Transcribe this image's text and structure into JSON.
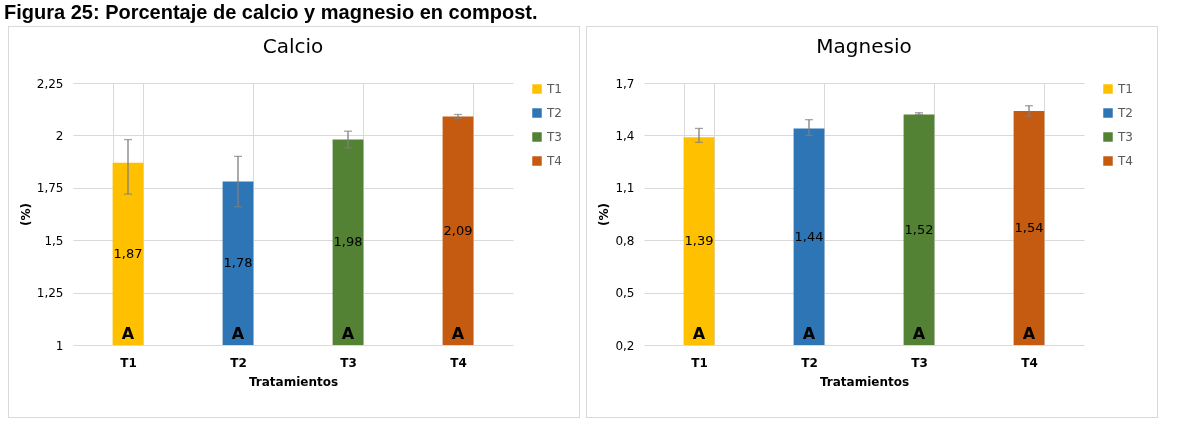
{
  "chart_data": [
    {
      "type": "bar",
      "title": "Calcio",
      "xlabel": "Tratamientos",
      "ylabel": "(%)",
      "stacked": true,
      "annotations": [
        "Figura 25: Porcentaje de calcio y magnesio en compost.",
        "A",
        "A",
        "A",
        "A"
      ],
      "categories": [
        "T1",
        "T2",
        "T3",
        "T4"
      ],
      "series": [
        {
          "name": "T1",
          "color": "#ffc000",
          "values": [
            1.87,
            null,
            null,
            null
          ],
          "value_labels": [
            "1,87",
            null,
            null,
            null
          ],
          "errors": [
            [
              1.72,
              1.98
            ],
            null,
            null,
            null
          ]
        },
        {
          "name": "T2",
          "color": "#2e75b6",
          "values": [
            null,
            1.78,
            null,
            null
          ],
          "value_labels": [
            null,
            "1,78",
            null,
            null
          ],
          "errors": [
            null,
            [
              1.66,
              1.9
            ],
            null,
            null
          ]
        },
        {
          "name": "T3",
          "color": "#548235",
          "values": [
            null,
            null,
            1.98,
            null
          ],
          "value_labels": [
            null,
            null,
            "1,98",
            null
          ],
          "errors": [
            null,
            null,
            [
              1.94,
              2.02
            ],
            null
          ]
        },
        {
          "name": "T4",
          "color": "#c55a11",
          "values": [
            null,
            null,
            null,
            2.09
          ],
          "value_labels": [
            null,
            null,
            null,
            "2,09"
          ],
          "errors": [
            null,
            null,
            null,
            [
              2.08,
              2.1
            ]
          ]
        }
      ],
      "ylim": [
        1,
        2.25
      ],
      "yticks": [
        {
          "value": 1,
          "label": "1"
        },
        {
          "value": 1.25,
          "label": "1,25"
        },
        {
          "value": 1.5,
          "label": "1,5"
        },
        {
          "value": 1.75,
          "label": "1,75"
        },
        {
          "value": 2,
          "label": "2"
        },
        {
          "value": 2.25,
          "label": "2,25"
        }
      ],
      "grid": true,
      "legend": "right"
    },
    {
      "type": "bar",
      "title": "Magnesio",
      "xlabel": "Tratamientos",
      "ylabel": "(%)",
      "stacked": true,
      "annotations": [
        "A",
        "A",
        "A",
        "A"
      ],
      "categories": [
        "T1",
        "T2",
        "T3",
        "T4"
      ],
      "series": [
        {
          "name": "T1",
          "color": "#ffc000",
          "values": [
            1.39,
            null,
            null,
            null
          ],
          "value_labels": [
            "1,39",
            null,
            null,
            null
          ],
          "errors": [
            [
              1.36,
              1.44
            ],
            null,
            null,
            null
          ]
        },
        {
          "name": "T2",
          "color": "#2e75b6",
          "values": [
            null,
            1.44,
            null,
            null
          ],
          "value_labels": [
            null,
            "1,44",
            null,
            null
          ],
          "errors": [
            null,
            [
              1.4,
              1.49
            ],
            null,
            null
          ]
        },
        {
          "name": "T3",
          "color": "#548235",
          "values": [
            null,
            null,
            1.52,
            null
          ],
          "value_labels": [
            null,
            null,
            "1,52",
            null
          ],
          "errors": [
            null,
            null,
            [
              1.52,
              1.53
            ],
            null
          ]
        },
        {
          "name": "T4",
          "color": "#c55a11",
          "values": [
            null,
            null,
            null,
            1.54
          ],
          "value_labels": [
            null,
            null,
            null,
            "1,54"
          ],
          "errors": [
            null,
            null,
            null,
            [
              1.51,
              1.57
            ]
          ]
        }
      ],
      "ylim": [
        0.2,
        1.7
      ],
      "yticks": [
        {
          "value": 0.2,
          "label": "0,2"
        },
        {
          "value": 0.5,
          "label": "0,5"
        },
        {
          "value": 0.8,
          "label": "0,8"
        },
        {
          "value": 1.1,
          "label": "1,1"
        },
        {
          "value": 1.4,
          "label": "1,4"
        },
        {
          "value": 1.7,
          "label": "1,7"
        }
      ],
      "grid": true,
      "legend": "right"
    }
  ]
}
